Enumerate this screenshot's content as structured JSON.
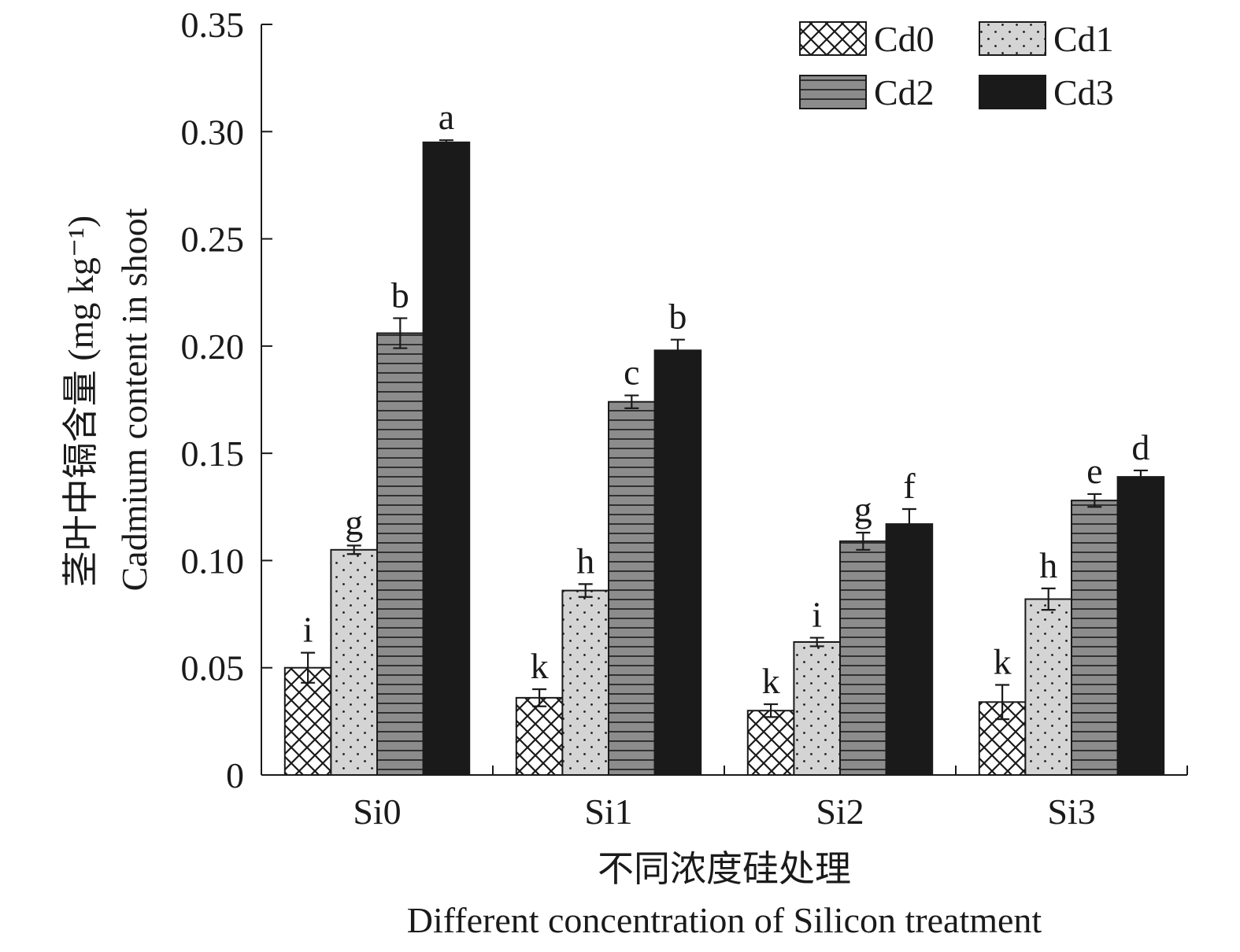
{
  "chart_data": {
    "type": "bar",
    "ylabel_cn": "茎叶中镉含量 (mg kg⁻¹)",
    "ylabel_en": "Cadmium content in shoot",
    "xlabel_cn": "不同浓度硅处理",
    "xlabel_en": "Different concentration of Silicon treatment",
    "ylim": [
      0,
      0.35
    ],
    "yticks": [
      "0",
      "0.05",
      "0.10",
      "0.15",
      "0.20",
      "0.25",
      "0.30",
      "0.35"
    ],
    "ytick_values": [
      0,
      0.05,
      0.1,
      0.15,
      0.2,
      0.25,
      0.3,
      0.35
    ],
    "categories": [
      "Si0",
      "Si1",
      "Si2",
      "Si3"
    ],
    "legend_position": "top-right",
    "series": [
      {
        "name": "Cd0",
        "pattern": "crosshatch",
        "values": [
          0.05,
          0.036,
          0.03,
          0.034
        ],
        "errors": [
          0.007,
          0.004,
          0.003,
          0.008
        ],
        "letters": [
          "i",
          "k",
          "k",
          "k"
        ]
      },
      {
        "name": "Cd1",
        "pattern": "dots",
        "values": [
          0.105,
          0.086,
          0.062,
          0.082
        ],
        "errors": [
          0.002,
          0.003,
          0.002,
          0.005
        ],
        "letters": [
          "g",
          "h",
          "i",
          "h"
        ]
      },
      {
        "name": "Cd2",
        "pattern": "horizontal-lines",
        "values": [
          0.206,
          0.174,
          0.109,
          0.128
        ],
        "errors": [
          0.007,
          0.003,
          0.004,
          0.003
        ],
        "letters": [
          "b",
          "c",
          "g",
          "e"
        ]
      },
      {
        "name": "Cd3",
        "pattern": "solid",
        "values": [
          0.295,
          0.198,
          0.117,
          0.139
        ],
        "errors": [
          0.001,
          0.005,
          0.007,
          0.003
        ],
        "letters": [
          "a",
          "b",
          "f",
          "d"
        ]
      }
    ]
  }
}
